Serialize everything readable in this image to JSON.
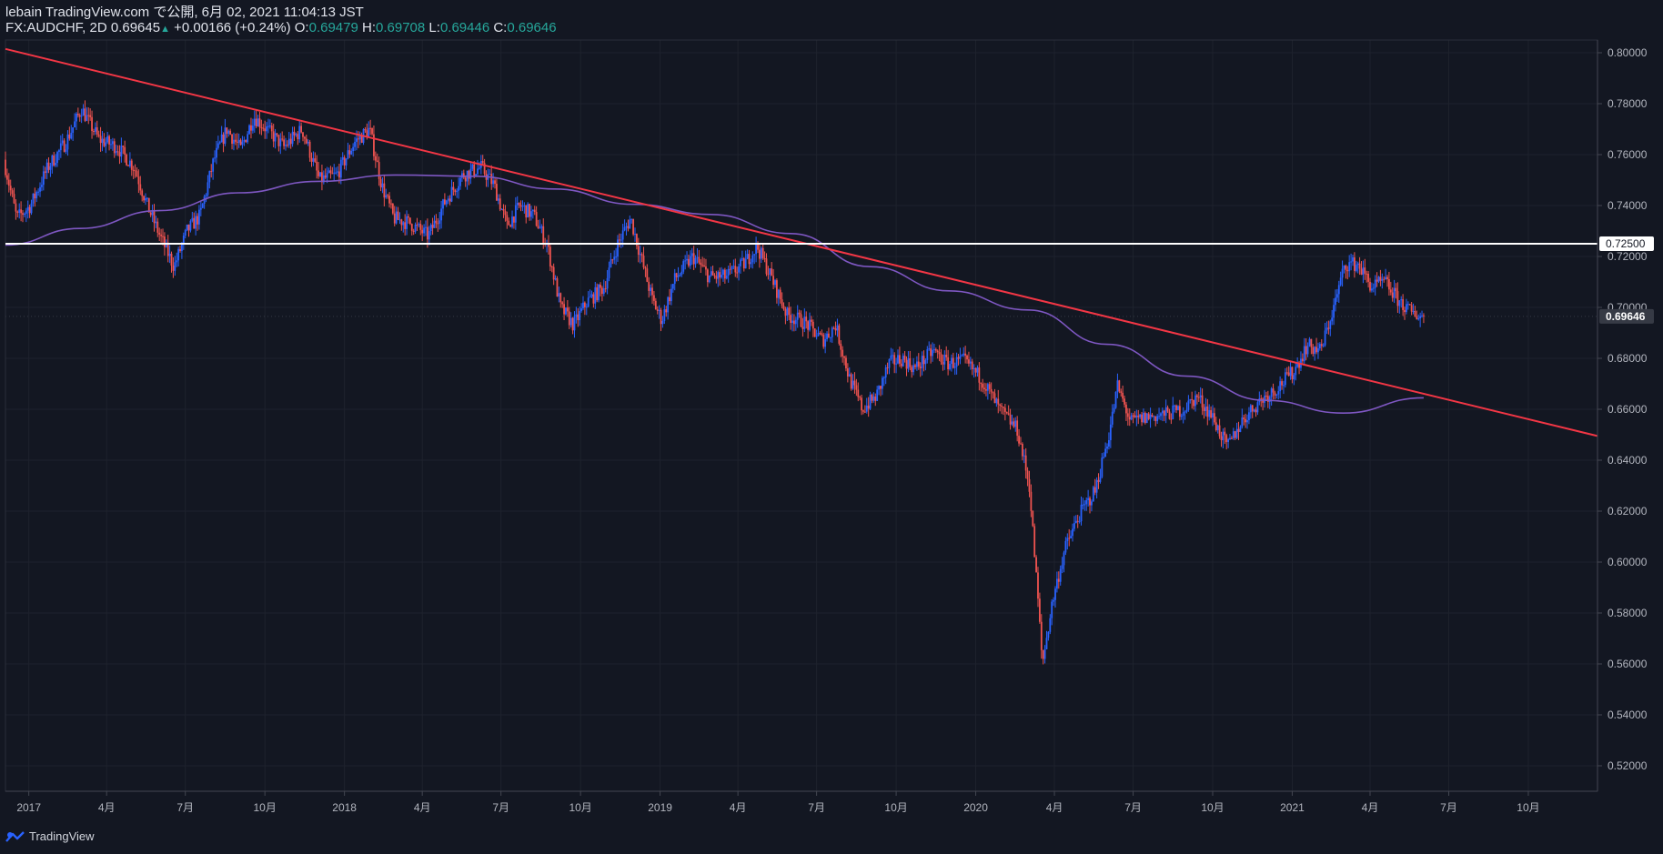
{
  "header": {
    "line1": "lebain TradingView.com で公開, 6月 02, 2021 11:04:13 JST",
    "symbol": "FX:AUDCHF, 2D",
    "last": "0.69645",
    "change": "+0.00166 (+0.24%)",
    "o_label": "O:",
    "o_value": "0.69479",
    "h_label": "H:",
    "h_value": "0.69708",
    "l_label": "L:",
    "l_value": "0.69446",
    "c_label": "C:",
    "c_value": "0.69646"
  },
  "footer": {
    "brand": "TradingView",
    "icon": "tradingview-logo-icon"
  },
  "colors": {
    "background": "#131722",
    "up_candle": "#2962ff",
    "down_candle": "#ef5350",
    "ma_line": "#7e57c2",
    "trend_line": "#f23645",
    "horizontal_line": "#ffffff",
    "axis_text": "#b2b5be"
  },
  "chart_data": {
    "type": "candlestick",
    "symbol": "FX:AUDCHF",
    "timeframe": "2D",
    "x_range": [
      "2016-12-05",
      "2021-12-20"
    ],
    "ylim": [
      0.51,
      0.805
    ],
    "y_ticks": [
      "0.80000",
      "0.78000",
      "0.76000",
      "0.74000",
      "0.72000",
      "0.70000",
      "0.68000",
      "0.66000",
      "0.64000",
      "0.62000",
      "0.60000",
      "0.58000",
      "0.56000",
      "0.54000",
      "0.52000"
    ],
    "x_ticks": [
      {
        "label": "2017",
        "date": "2017-01-01"
      },
      {
        "label": "4月",
        "date": "2017-04-01"
      },
      {
        "label": "7月",
        "date": "2017-07-01"
      },
      {
        "label": "10月",
        "date": "2017-10-01"
      },
      {
        "label": "2018",
        "date": "2018-01-01"
      },
      {
        "label": "4月",
        "date": "2018-04-01"
      },
      {
        "label": "7月",
        "date": "2018-07-01"
      },
      {
        "label": "10月",
        "date": "2018-10-01"
      },
      {
        "label": "2019",
        "date": "2019-01-01"
      },
      {
        "label": "4月",
        "date": "2019-04-01"
      },
      {
        "label": "7月",
        "date": "2019-07-01"
      },
      {
        "label": "10月",
        "date": "2019-10-01"
      },
      {
        "label": "2020",
        "date": "2020-01-01"
      },
      {
        "label": "4月",
        "date": "2020-04-01"
      },
      {
        "label": "7月",
        "date": "2020-07-01"
      },
      {
        "label": "10月",
        "date": "2020-10-01"
      },
      {
        "label": "2021",
        "date": "2021-01-01"
      },
      {
        "label": "4月",
        "date": "2021-04-01"
      },
      {
        "label": "7月",
        "date": "2021-07-01"
      },
      {
        "label": "10月",
        "date": "2021-10-01"
      }
    ],
    "price_path": [
      [
        "2016-12-05",
        0.758
      ],
      [
        "2016-12-20",
        0.735
      ],
      [
        "2017-01-05",
        0.74
      ],
      [
        "2017-01-25",
        0.755
      ],
      [
        "2017-02-15",
        0.765
      ],
      [
        "2017-03-05",
        0.778
      ],
      [
        "2017-03-25",
        0.766
      ],
      [
        "2017-04-15",
        0.763
      ],
      [
        "2017-05-05",
        0.755
      ],
      [
        "2017-05-20",
        0.74
      ],
      [
        "2017-06-05",
        0.727
      ],
      [
        "2017-06-20",
        0.716
      ],
      [
        "2017-07-05",
        0.73
      ],
      [
        "2017-07-20",
        0.736
      ],
      [
        "2017-08-05",
        0.758
      ],
      [
        "2017-08-20",
        0.77
      ],
      [
        "2017-09-05",
        0.762
      ],
      [
        "2017-09-20",
        0.775
      ],
      [
        "2017-10-05",
        0.77
      ],
      [
        "2017-10-25",
        0.763
      ],
      [
        "2017-11-15",
        0.77
      ],
      [
        "2017-12-05",
        0.75
      ],
      [
        "2017-12-25",
        0.752
      ],
      [
        "2018-01-15",
        0.765
      ],
      [
        "2018-02-01",
        0.77
      ],
      [
        "2018-02-15",
        0.748
      ],
      [
        "2018-03-01",
        0.735
      ],
      [
        "2018-03-20",
        0.733
      ],
      [
        "2018-04-10",
        0.728
      ],
      [
        "2018-04-30",
        0.742
      ],
      [
        "2018-05-20",
        0.752
      ],
      [
        "2018-06-10",
        0.755
      ],
      [
        "2018-06-25",
        0.748
      ],
      [
        "2018-07-10",
        0.732
      ],
      [
        "2018-07-25",
        0.74
      ],
      [
        "2018-08-10",
        0.736
      ],
      [
        "2018-08-25",
        0.725
      ],
      [
        "2018-09-10",
        0.7
      ],
      [
        "2018-09-25",
        0.693
      ],
      [
        "2018-10-10",
        0.702
      ],
      [
        "2018-10-30",
        0.708
      ],
      [
        "2018-11-15",
        0.725
      ],
      [
        "2018-11-30",
        0.735
      ],
      [
        "2018-12-10",
        0.722
      ],
      [
        "2018-12-25",
        0.703
      ],
      [
        "2019-01-05",
        0.695
      ],
      [
        "2019-01-20",
        0.711
      ],
      [
        "2019-02-10",
        0.72
      ],
      [
        "2019-03-01",
        0.712
      ],
      [
        "2019-03-20",
        0.712
      ],
      [
        "2019-04-10",
        0.717
      ],
      [
        "2019-04-25",
        0.724
      ],
      [
        "2019-05-10",
        0.713
      ],
      [
        "2019-05-30",
        0.697
      ],
      [
        "2019-06-20",
        0.694
      ],
      [
        "2019-07-10",
        0.687
      ],
      [
        "2019-07-25",
        0.693
      ],
      [
        "2019-08-10",
        0.672
      ],
      [
        "2019-08-25",
        0.66
      ],
      [
        "2019-09-10",
        0.665
      ],
      [
        "2019-09-25",
        0.678
      ],
      [
        "2019-10-10",
        0.68
      ],
      [
        "2019-10-25",
        0.676
      ],
      [
        "2019-11-15",
        0.683
      ],
      [
        "2019-12-01",
        0.678
      ],
      [
        "2019-12-20",
        0.679
      ],
      [
        "2020-01-10",
        0.672
      ],
      [
        "2020-01-30",
        0.66
      ],
      [
        "2020-02-20",
        0.652
      ],
      [
        "2020-03-05",
        0.63
      ],
      [
        "2020-03-15",
        0.585
      ],
      [
        "2020-03-20",
        0.56
      ],
      [
        "2020-04-01",
        0.585
      ],
      [
        "2020-04-15",
        0.605
      ],
      [
        "2020-05-01",
        0.618
      ],
      [
        "2020-05-20",
        0.628
      ],
      [
        "2020-06-05",
        0.65
      ],
      [
        "2020-06-15",
        0.669
      ],
      [
        "2020-06-30",
        0.655
      ],
      [
        "2020-07-20",
        0.657
      ],
      [
        "2020-08-10",
        0.658
      ],
      [
        "2020-08-30",
        0.66
      ],
      [
        "2020-09-15",
        0.665
      ],
      [
        "2020-10-01",
        0.658
      ],
      [
        "2020-10-20",
        0.645
      ],
      [
        "2020-11-05",
        0.655
      ],
      [
        "2020-11-25",
        0.663
      ],
      [
        "2020-12-15",
        0.668
      ],
      [
        "2021-01-05",
        0.675
      ],
      [
        "2021-01-20",
        0.685
      ],
      [
        "2021-02-05",
        0.683
      ],
      [
        "2021-02-20",
        0.7
      ],
      [
        "2021-03-05",
        0.717
      ],
      [
        "2021-03-20",
        0.717
      ],
      [
        "2021-04-05",
        0.708
      ],
      [
        "2021-04-20",
        0.71
      ],
      [
        "2021-05-05",
        0.703
      ],
      [
        "2021-05-20",
        0.698
      ],
      [
        "2021-06-02",
        0.6965
      ]
    ],
    "moving_average": [
      [
        "2016-12-05",
        0.7245
      ],
      [
        "2017-03-01",
        0.731
      ],
      [
        "2017-06-01",
        0.738
      ],
      [
        "2017-09-01",
        0.745
      ],
      [
        "2017-12-01",
        0.7495
      ],
      [
        "2018-03-01",
        0.752
      ],
      [
        "2018-06-01",
        0.7515
      ],
      [
        "2018-09-01",
        0.7465
      ],
      [
        "2018-12-01",
        0.7405
      ],
      [
        "2019-03-01",
        0.7365
      ],
      [
        "2019-06-01",
        0.729
      ],
      [
        "2019-09-01",
        0.716
      ],
      [
        "2019-12-01",
        0.7065
      ],
      [
        "2020-03-01",
        0.699
      ],
      [
        "2020-06-01",
        0.6855
      ],
      [
        "2020-09-01",
        0.673
      ],
      [
        "2020-12-01",
        0.6635
      ],
      [
        "2021-03-01",
        0.6585
      ],
      [
        "2021-06-02",
        0.6645
      ]
    ],
    "trend_line": {
      "points": [
        [
          "2016-12-05",
          0.8015
        ],
        [
          "2021-12-20",
          0.6495
        ]
      ]
    },
    "horizontal_line": {
      "value": 0.725,
      "label": "0.72500"
    },
    "last_price_label": "0.69646"
  }
}
